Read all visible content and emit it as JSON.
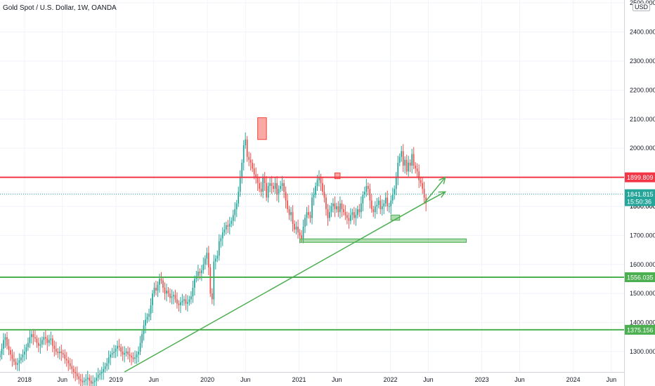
{
  "chart_data": {
    "type": "candlestick",
    "title": "Gold Spot / U.S. Dollar, 1W, OANDA",
    "currency": "USD",
    "xlabel": "",
    "ylabel": "",
    "ylim": [
      1230,
      2510
    ],
    "x_range": [
      "2017-09-25",
      "2024-07-22"
    ],
    "y_ticks": [
      1300,
      1400,
      1500,
      1600,
      1700,
      1800,
      1900,
      2000,
      2100,
      2200,
      2300,
      2400,
      2500
    ],
    "x_ticks": [
      {
        "date": "2018-01-01",
        "label": "2018"
      },
      {
        "date": "2018-06-01",
        "label": "Jun"
      },
      {
        "date": "2019-01-01",
        "label": "2019"
      },
      {
        "date": "2019-06-01",
        "label": "Jun"
      },
      {
        "date": "2020-01-01",
        "label": "2020"
      },
      {
        "date": "2020-06-01",
        "label": "Jun"
      },
      {
        "date": "2021-01-01",
        "label": "2021"
      },
      {
        "date": "2021-06-01",
        "label": "Jun"
      },
      {
        "date": "2022-01-01",
        "label": "2022"
      },
      {
        "date": "2022-06-01",
        "label": "Jun"
      },
      {
        "date": "2023-01-01",
        "label": "2023"
      },
      {
        "date": "2023-06-01",
        "label": "Jun"
      },
      {
        "date": "2024-01-01",
        "label": "2024"
      },
      {
        "date": "2024-06-01",
        "label": "Jun"
      }
    ],
    "grid": true,
    "up_color": "#26a69a",
    "down_color": "#ef5350",
    "closes": [
      1290,
      1310,
      1340,
      1350,
      1320,
      1305,
      1290,
      1275,
      1265,
      1255,
      1260,
      1270,
      1280,
      1290,
      1300,
      1315,
      1330,
      1350,
      1360,
      1350,
      1345,
      1330,
      1320,
      1325,
      1340,
      1350,
      1345,
      1330,
      1340,
      1345,
      1320,
      1310,
      1300,
      1295,
      1300,
      1295,
      1290,
      1275,
      1270,
      1260,
      1250,
      1240,
      1230,
      1225,
      1215,
      1205,
      1200,
      1195,
      1200,
      1205,
      1210,
      1200,
      1190,
      1195,
      1200,
      1210,
      1220,
      1225,
      1230,
      1240,
      1250,
      1260,
      1280,
      1290,
      1295,
      1300,
      1310,
      1320,
      1315,
      1300,
      1290,
      1295,
      1300,
      1290,
      1285,
      1280,
      1275,
      1280,
      1290,
      1300,
      1330,
      1360,
      1390,
      1410,
      1420,
      1430,
      1460,
      1500,
      1520,
      1510,
      1530,
      1550,
      1545,
      1520,
      1500,
      1510,
      1500,
      1485,
      1490,
      1495,
      1480,
      1465,
      1460,
      1470,
      1475,
      1480,
      1465,
      1470,
      1480,
      1490,
      1520,
      1550,
      1560,
      1575,
      1570,
      1580,
      1600,
      1620,
      1640,
      1590,
      1500,
      1480,
      1610,
      1620,
      1630,
      1680,
      1690,
      1710,
      1720,
      1735,
      1730,
      1740,
      1750,
      1770,
      1790,
      1810,
      1850,
      1900,
      1950,
      2010,
      2030,
      1970,
      1960,
      1950,
      1930,
      1910,
      1900,
      1880,
      1860,
      1850,
      1900,
      1880,
      1830,
      1870,
      1880,
      1870,
      1860,
      1880,
      1840,
      1860,
      1870,
      1880,
      1850,
      1820,
      1790,
      1770,
      1780,
      1740,
      1720,
      1730,
      1710,
      1700,
      1690,
      1730,
      1760,
      1780,
      1770,
      1760,
      1830,
      1840,
      1870,
      1890,
      1900,
      1880,
      1850,
      1830,
      1790,
      1760,
      1780,
      1800,
      1810,
      1790,
      1800,
      1780,
      1810,
      1790,
      1780,
      1770,
      1760,
      1750,
      1770,
      1780,
      1760,
      1770,
      1790,
      1780,
      1810,
      1840,
      1850,
      1870,
      1860,
      1820,
      1790,
      1780,
      1800,
      1805,
      1820,
      1790,
      1800,
      1810,
      1830,
      1800,
      1800,
      1820,
      1840,
      1860,
      1900,
      1950,
      1970,
      1990,
      1940,
      1960,
      1920,
      1950,
      1940,
      1980,
      1940,
      1930,
      1920,
      1890,
      1880,
      1860,
      1830,
      1810
    ],
    "horizontal_levels": [
      {
        "value": 1899.809,
        "label": "1899.809",
        "color": "#f23645"
      },
      {
        "value": 1556.035,
        "label": "1556.035",
        "color": "#4caf50"
      },
      {
        "value": 1375.156,
        "label": "1375.156",
        "color": "#4caf50"
      }
    ],
    "current_price": {
      "value": 1841.815,
      "label": "1841.815",
      "countdown": "15:50:36",
      "color": "#26a69a"
    },
    "hidden_tick_label": "1800.000",
    "trendline": {
      "start": [
        "2019-02-04",
        1230
      ],
      "end": [
        "2022-05-16",
        1811
      ],
      "color": "#4caf50"
    },
    "projection_arrows": [
      {
        "start": [
          "2022-05-16",
          1811
        ],
        "end": [
          "2022-08-08",
          1900
        ]
      },
      {
        "start": [
          "2022-05-16",
          1811
        ],
        "end": [
          "2022-08-08",
          1850
        ]
      }
    ],
    "zones": [
      {
        "kind": "supply",
        "x0": "2020-07-20",
        "x1": "2020-08-24",
        "y0": 2030,
        "y1": 2105,
        "color": "#f44336"
      },
      {
        "kind": "resistance",
        "x0": "2021-05-24",
        "x1": "2021-06-14",
        "y0": 1895,
        "y1": 1915,
        "color": "#f44336"
      },
      {
        "kind": "support",
        "x0": "2022-01-03",
        "x1": "2022-02-07",
        "y0": 1752,
        "y1": 1770,
        "color": "#4caf50"
      },
      {
        "kind": "support",
        "x0": "2021-01-04",
        "x1": "2022-10-31",
        "y0": 1676,
        "y1": 1688,
        "color": "#4caf50"
      }
    ]
  }
}
